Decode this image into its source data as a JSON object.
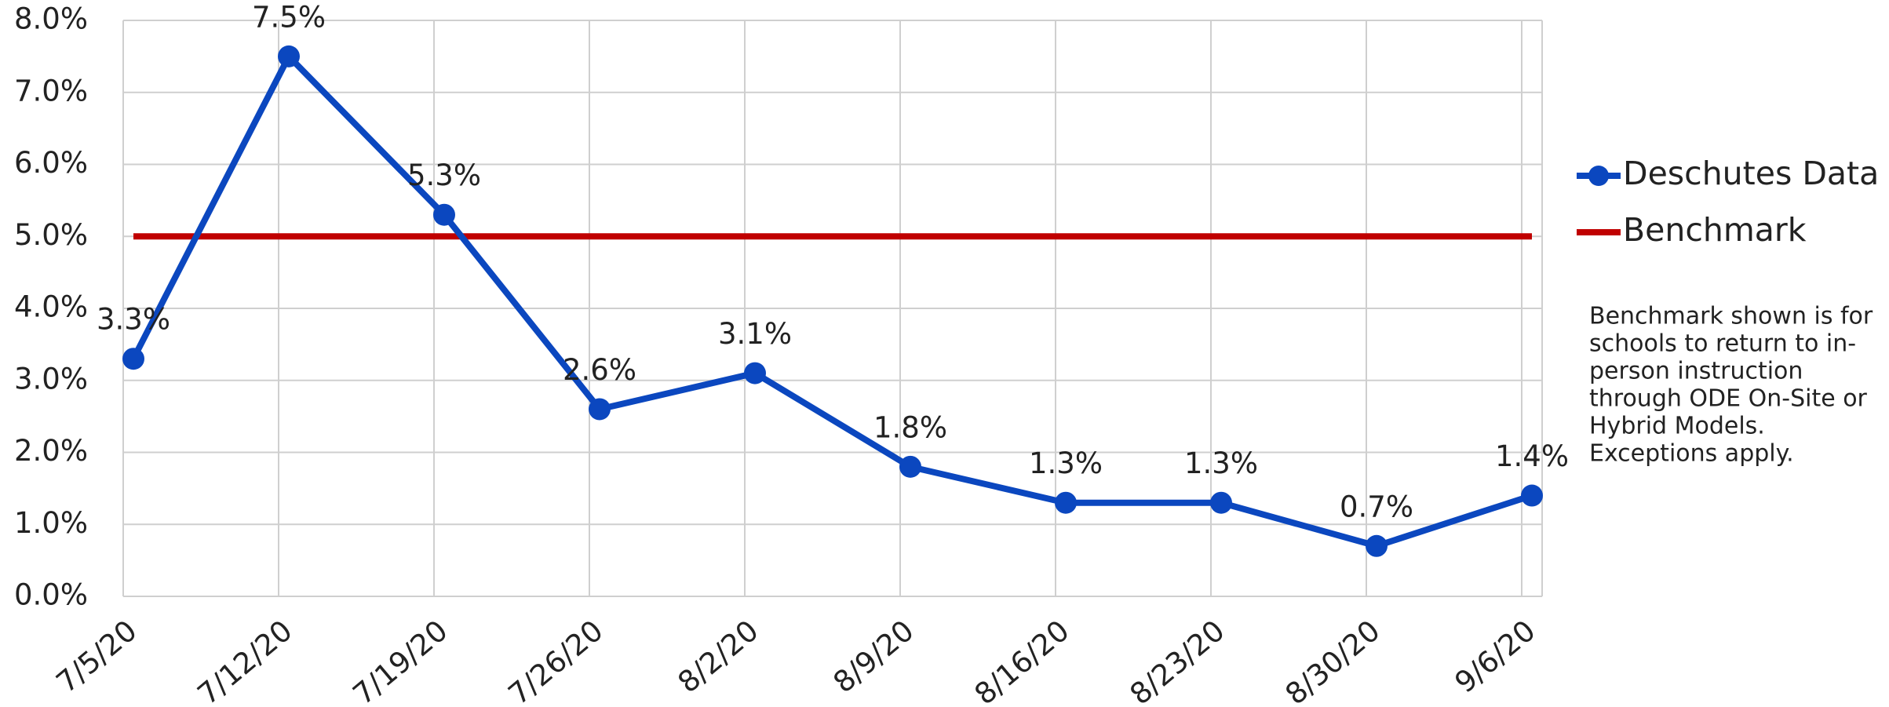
{
  "chart_data": {
    "type": "line",
    "categories": [
      "7/5/20",
      "7/12/20",
      "7/19/20",
      "7/26/20",
      "8/2/20",
      "8/9/20",
      "8/16/20",
      "8/23/20",
      "8/30/20",
      "9/6/20"
    ],
    "series": [
      {
        "name": "Deschutes Data",
        "color": "#0b47bf",
        "marker": true,
        "values": [
          3.3,
          7.5,
          5.3,
          2.6,
          3.1,
          1.8,
          1.3,
          1.3,
          0.7,
          1.4
        ],
        "value_labels": [
          "3.3%",
          "7.5%",
          "5.3%",
          "2.6%",
          "3.1%",
          "1.8%",
          "1.3%",
          "1.3%",
          "0.7%",
          "1.4%"
        ]
      },
      {
        "name": "Benchmark",
        "color": "#c00000",
        "marker": false,
        "values": [
          5,
          5,
          5,
          5,
          5,
          5,
          5,
          5,
          5,
          5
        ]
      }
    ],
    "ylim": [
      0,
      8
    ],
    "yticks": [
      {
        "value": 0,
        "label": "0.0%"
      },
      {
        "value": 1,
        "label": "1.0%"
      },
      {
        "value": 2,
        "label": "2.0%"
      },
      {
        "value": 3,
        "label": "3.0%"
      },
      {
        "value": 4,
        "label": "4.0%"
      },
      {
        "value": 5,
        "label": "5.0%"
      },
      {
        "value": 6,
        "label": "6.0%"
      },
      {
        "value": 7,
        "label": "7.0%"
      },
      {
        "value": 8,
        "label": "8.0%"
      }
    ],
    "grid": true,
    "legend": "right",
    "annotation": [
      "Benchmark shown is for",
      "schools to return to in-",
      "person instruction",
      "through ODE On-Site or",
      "Hybrid Models.",
      "Exceptions apply."
    ]
  }
}
